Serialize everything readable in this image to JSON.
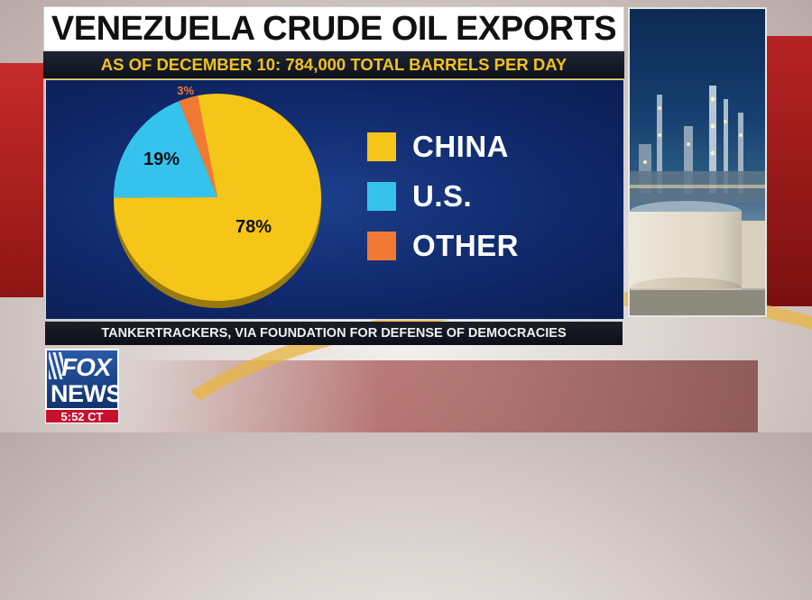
{
  "headline": "VENEZUELA CRUDE OIL EXPORTS",
  "subhead": "AS OF DECEMBER 10: 784,000 TOTAL BARRELS PER DAY",
  "source": "TANKERTRACKERS, VIA FOUNDATION FOR DEFENSE OF DEMOCRACIES",
  "network": {
    "logo_line1": "FOX",
    "logo_line2": "NEWS",
    "time": "5:52 CT"
  },
  "chart_data": {
    "type": "pie",
    "title": "VENEZUELA CRUDE OIL EXPORTS",
    "subtitle": "AS OF DECEMBER 10: 784,000 TOTAL BARRELS PER DAY",
    "legend_position": "right",
    "slices": [
      {
        "label": "CHINA",
        "value": 78,
        "display": "78%",
        "color": "#f5c518"
      },
      {
        "label": "U.S.",
        "value": 19,
        "display": "19%",
        "color": "#35c3ee"
      },
      {
        "label": "OTHER",
        "value": 3,
        "display": "3%",
        "color": "#f07a33"
      }
    ]
  }
}
